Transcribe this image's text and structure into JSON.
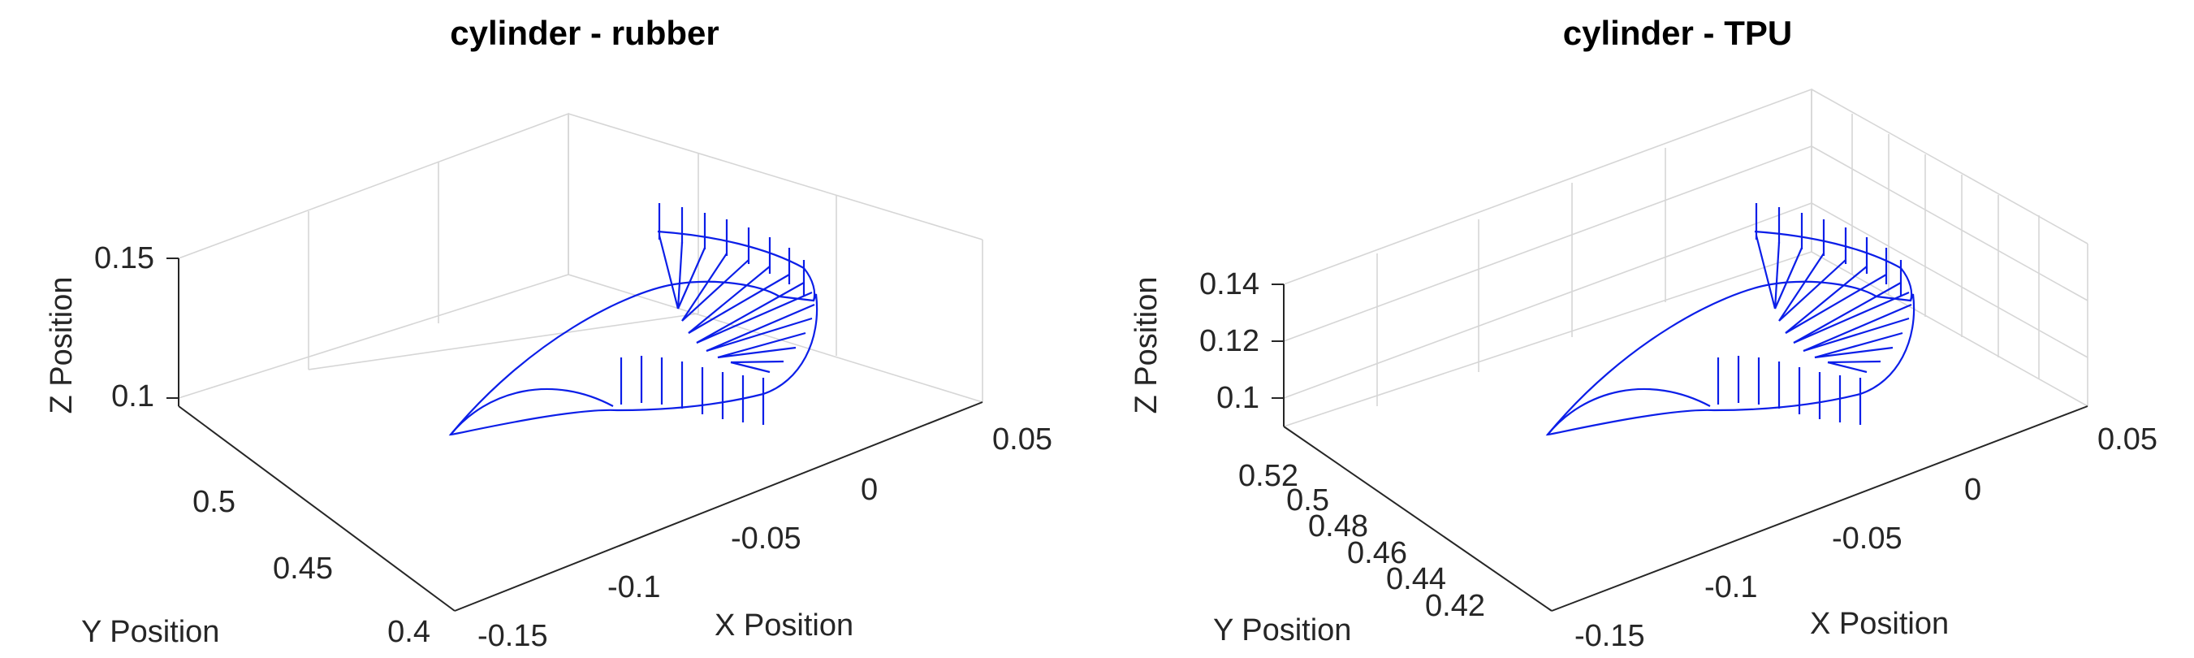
{
  "chart_data": [
    {
      "type": "line3d",
      "title": "cylinder - rubber",
      "xlabel": "X Position",
      "ylabel": "Y Position",
      "zlabel": "Z Position",
      "xticks": [
        "-0.15",
        "-0.1",
        "-0.05",
        "0",
        "0.05"
      ],
      "yticks": [
        "0.4",
        "0.45",
        "0.5"
      ],
      "zticks": [
        "0.1",
        "0.15"
      ],
      "xlim": [
        -0.15,
        0.06
      ],
      "ylim": [
        0.4,
        0.52
      ],
      "zlim": [
        0.09,
        0.15
      ],
      "grid": true,
      "series": [
        {
          "color": "#0b1ee8",
          "x": [
            -0.15,
            -0.12,
            -0.09,
            -0.06,
            -0.03,
            0.0,
            0.02,
            0.035,
            0.045,
            0.05
          ],
          "y": [
            0.47,
            0.452,
            0.445,
            0.448,
            0.46,
            0.475,
            0.49,
            0.5,
            0.505,
            0.51
          ],
          "z": [
            0.1,
            0.103,
            0.105,
            0.108,
            0.112,
            0.118,
            0.124,
            0.13,
            0.136,
            0.14
          ]
        }
      ]
    },
    {
      "type": "line3d",
      "title": "cylinder - TPU",
      "xlabel": "X Position",
      "ylabel": "Y Position",
      "zlabel": "Z Position",
      "xticks": [
        "-0.15",
        "-0.1",
        "-0.05",
        "0",
        "0.05"
      ],
      "yticks": [
        "0.42",
        "0.44",
        "0.46",
        "0.48",
        "0.5",
        "0.52"
      ],
      "zticks": [
        "0.1",
        "0.12",
        "0.14"
      ],
      "xlim": [
        -0.15,
        0.06
      ],
      "ylim": [
        0.41,
        0.53
      ],
      "zlim": [
        0.095,
        0.145
      ],
      "grid": true,
      "series": [
        {
          "color": "#0b1ee8",
          "x": [
            -0.15,
            -0.12,
            -0.09,
            -0.06,
            -0.03,
            0.0,
            0.02,
            0.035,
            0.045,
            0.05
          ],
          "y": [
            0.47,
            0.452,
            0.445,
            0.448,
            0.46,
            0.475,
            0.49,
            0.5,
            0.505,
            0.51
          ],
          "z": [
            0.1,
            0.103,
            0.105,
            0.108,
            0.112,
            0.118,
            0.124,
            0.13,
            0.136,
            0.14
          ]
        }
      ]
    }
  ]
}
